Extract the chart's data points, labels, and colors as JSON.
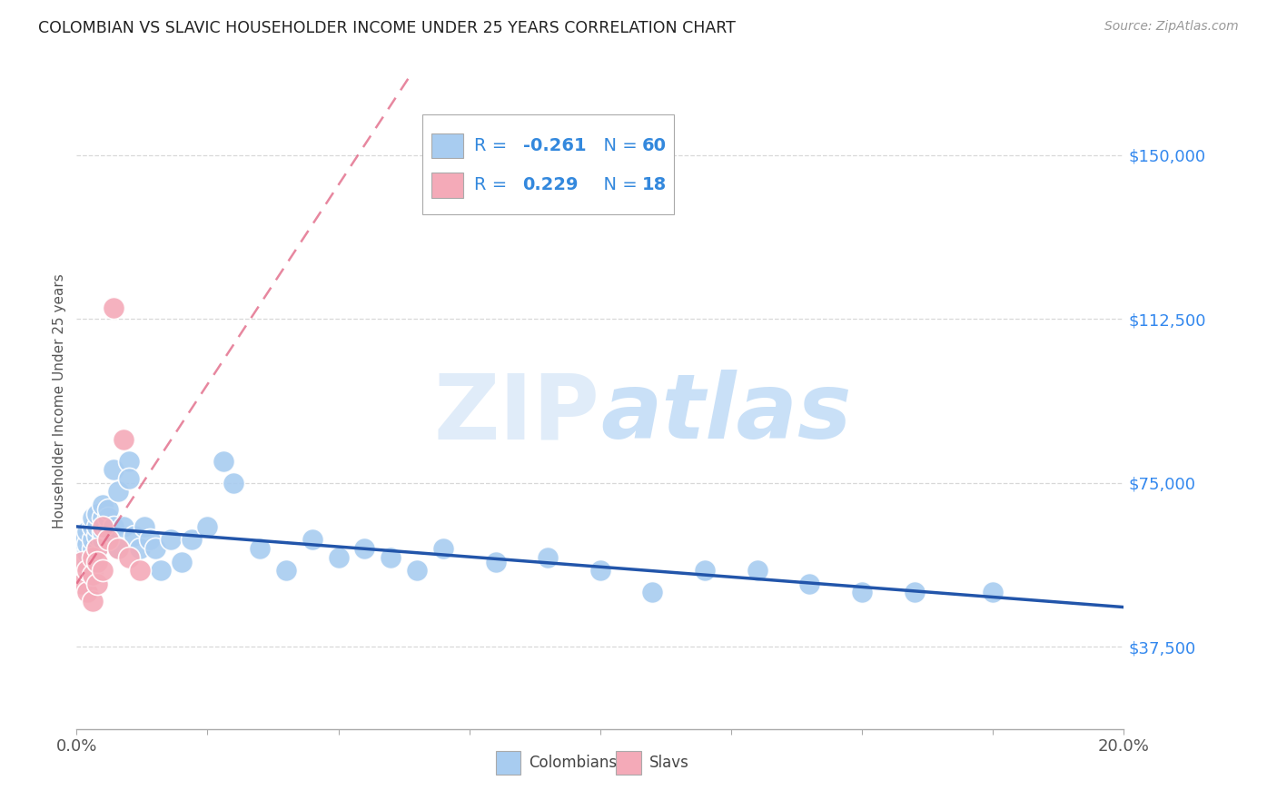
{
  "title": "COLOMBIAN VS SLAVIC HOUSEHOLDER INCOME UNDER 25 YEARS CORRELATION CHART",
  "source": "Source: ZipAtlas.com",
  "ylabel": "Householder Income Under 25 years",
  "xlim": [
    0.0,
    0.2
  ],
  "ylim": [
    18750,
    168750
  ],
  "ytick_positions": [
    37500,
    75000,
    112500,
    150000
  ],
  "ytick_labels": [
    "$37,500",
    "$75,000",
    "$112,500",
    "$150,000"
  ],
  "background_color": "#ffffff",
  "grid_color": "#d8d8d8",
  "watermark_text": "ZIPatlas",
  "colombians_color": "#a8ccf0",
  "slavs_color": "#f4aab8",
  "colombians_line_color": "#2255aa",
  "slavs_line_color": "#dd5577",
  "legend_text_color": "#3388dd",
  "legend_R_col": "-0.261",
  "legend_N_col": "60",
  "legend_R_slav": "0.229",
  "legend_N_slav": "18",
  "colombians_x": [
    0.001,
    0.001,
    0.001,
    0.002,
    0.002,
    0.002,
    0.002,
    0.003,
    0.003,
    0.003,
    0.003,
    0.003,
    0.004,
    0.004,
    0.004,
    0.004,
    0.005,
    0.005,
    0.005,
    0.005,
    0.006,
    0.006,
    0.006,
    0.007,
    0.007,
    0.008,
    0.008,
    0.009,
    0.01,
    0.01,
    0.011,
    0.012,
    0.013,
    0.014,
    0.015,
    0.016,
    0.018,
    0.02,
    0.022,
    0.025,
    0.028,
    0.03,
    0.035,
    0.04,
    0.045,
    0.05,
    0.055,
    0.06,
    0.065,
    0.07,
    0.08,
    0.09,
    0.1,
    0.11,
    0.12,
    0.13,
    0.14,
    0.15,
    0.16,
    0.175
  ],
  "colombians_y": [
    58000,
    60000,
    62000,
    57000,
    59000,
    61000,
    64000,
    57000,
    60000,
    62000,
    65000,
    67000,
    60000,
    63000,
    65000,
    68000,
    62000,
    64000,
    67000,
    70000,
    64000,
    67000,
    69000,
    65000,
    78000,
    60000,
    73000,
    65000,
    80000,
    76000,
    63000,
    60000,
    65000,
    62000,
    60000,
    55000,
    62000,
    57000,
    62000,
    65000,
    80000,
    75000,
    60000,
    55000,
    62000,
    58000,
    60000,
    58000,
    55000,
    60000,
    57000,
    58000,
    55000,
    50000,
    55000,
    55000,
    52000,
    50000,
    50000,
    50000
  ],
  "slavs_x": [
    0.001,
    0.001,
    0.002,
    0.002,
    0.003,
    0.003,
    0.003,
    0.004,
    0.004,
    0.004,
    0.005,
    0.005,
    0.006,
    0.007,
    0.008,
    0.009,
    0.01,
    0.012
  ],
  "slavs_y": [
    57000,
    52000,
    55000,
    50000,
    58000,
    54000,
    48000,
    60000,
    57000,
    52000,
    65000,
    55000,
    62000,
    115000,
    60000,
    85000,
    58000,
    55000
  ]
}
